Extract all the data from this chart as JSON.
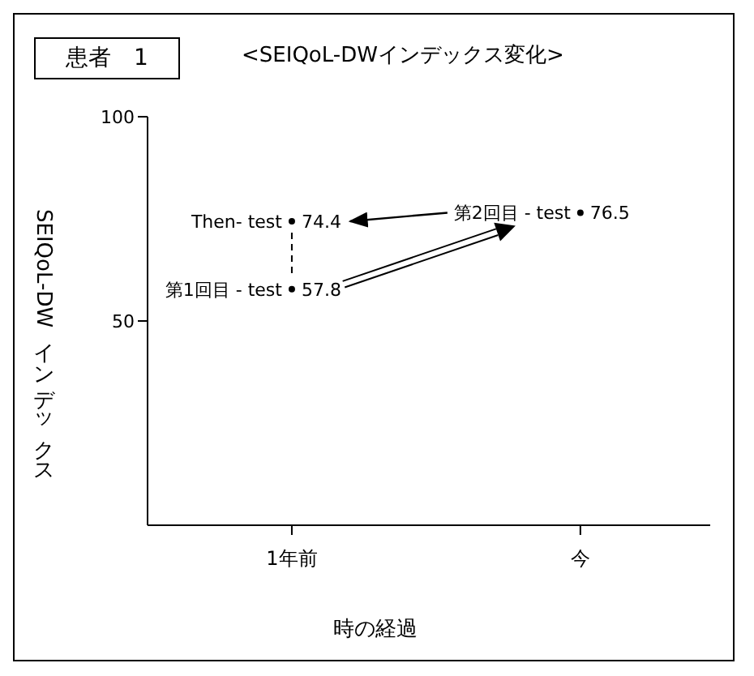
{
  "chart_data": {
    "type": "scatter",
    "title": "<SEIQoL-DWインデックス変化>",
    "subtitle": "患者　1",
    "xlabel": "時の経過",
    "ylabel": "SEIQoL-DWインデックス",
    "categories": [
      "1年前",
      "今"
    ],
    "series": [
      {
        "name": "Then- test",
        "color": "#000000",
        "values": [
          74.4,
          null
        ]
      },
      {
        "name": "第1回目 - test",
        "color": "#000000",
        "values": [
          57.8,
          null
        ]
      },
      {
        "name": "第2回目 - test",
        "color": "#000000",
        "values": [
          null,
          76.5
        ]
      }
    ],
    "ylim": [
      0,
      100
    ],
    "yticks": [
      50,
      100
    ],
    "grid": false,
    "legend": false,
    "marker": "circle",
    "data_labels": true
  }
}
